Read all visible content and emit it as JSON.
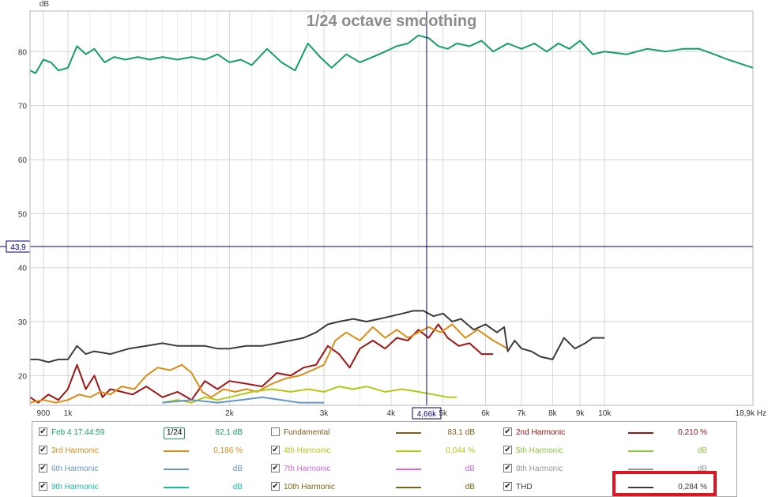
{
  "chart_data": {
    "type": "line",
    "title": "1/24 octave smoothing",
    "ylabel": "dB",
    "xunit": "Hz",
    "xscale": "log",
    "xlim": [
      850,
      18900
    ],
    "ylim": [
      14.5,
      87.5
    ],
    "grid": true,
    "y_ticks": [
      "20",
      "30",
      "40",
      "50",
      "60",
      "70",
      "80"
    ],
    "x_ticks": [
      {
        "v": 900,
        "label": "900"
      },
      {
        "v": 1000,
        "label": "1k"
      },
      {
        "v": 2000,
        "label": "2k"
      },
      {
        "v": 3000,
        "label": "3k"
      },
      {
        "v": 4000,
        "label": "4k"
      },
      {
        "v": 5000,
        "label": "5k"
      },
      {
        "v": 6000,
        "label": "6k"
      },
      {
        "v": 7000,
        "label": "7k"
      },
      {
        "v": 8000,
        "label": "8k"
      },
      {
        "v": 9000,
        "label": "9k"
      },
      {
        "v": 10000,
        "label": "10k"
      },
      {
        "v": 18900,
        "label": "18,9k Hz"
      }
    ],
    "minor_x_grid": [
      1100,
      1200,
      1300,
      1400,
      1500,
      1600,
      1700,
      1800,
      1900,
      2200,
      2400,
      2600,
      2800,
      3500,
      4500
    ],
    "cursor": {
      "x": 4660,
      "y": 43.9,
      "x_label": "4,66k",
      "y_label": "43,9"
    },
    "series": [
      {
        "name": "Feb 4 17:44:59",
        "color": "#14a064",
        "x": [
          850,
          870,
          900,
          930,
          960,
          1000,
          1040,
          1080,
          1120,
          1170,
          1220,
          1280,
          1350,
          1420,
          1500,
          1600,
          1700,
          1800,
          1900,
          2000,
          2100,
          2200,
          2350,
          2500,
          2650,
          2800,
          2950,
          3100,
          3300,
          3500,
          3700,
          3900,
          4100,
          4300,
          4500,
          4700,
          4900,
          5100,
          5300,
          5600,
          5900,
          6200,
          6600,
          7000,
          7400,
          7800,
          8200,
          8600,
          9000,
          9500,
          10000,
          11000,
          12000,
          13000,
          14000,
          15000,
          16000,
          17000,
          18900
        ],
        "y": [
          76.5,
          76,
          78.5,
          78,
          76.5,
          77,
          81,
          79.5,
          80.5,
          78,
          79,
          78.5,
          79,
          78.5,
          79,
          78.5,
          79,
          78.5,
          79.5,
          78,
          78.5,
          77.5,
          80.5,
          78,
          76.5,
          81.5,
          79,
          77,
          79.5,
          78,
          79,
          80,
          81,
          81.5,
          83,
          82.5,
          81,
          80.5,
          81.5,
          81,
          82,
          80,
          81.5,
          80.5,
          81.5,
          80,
          81.5,
          80.5,
          82,
          79.5,
          80,
          79.5,
          80.5,
          80,
          80.5,
          80.5,
          79.5,
          78.5,
          77
        ]
      },
      {
        "name": "Fundamental",
        "color": "#8a5a18",
        "x": [],
        "y": []
      },
      {
        "name": "2nd Harmonic",
        "color": "#a01414",
        "x": [
          850,
          880,
          920,
          960,
          1000,
          1040,
          1080,
          1120,
          1160,
          1200,
          1260,
          1320,
          1400,
          1500,
          1600,
          1700,
          1800,
          1900,
          2000,
          2150,
          2300,
          2450,
          2600,
          2750,
          2900,
          3050,
          3200,
          3350,
          3500,
          3700,
          3900,
          4100,
          4300,
          4500,
          4700,
          4900,
          5100,
          5350,
          5600,
          5900,
          6200
        ],
        "y": [
          16,
          15,
          16.5,
          15.5,
          17.5,
          22,
          17.5,
          20,
          16,
          17.5,
          17,
          16.5,
          18,
          16,
          17,
          15.5,
          19,
          17.5,
          19,
          18.5,
          18,
          20.5,
          20,
          21.5,
          22,
          25.5,
          24,
          21.5,
          25,
          26.5,
          25,
          27,
          26.5,
          28.5,
          27,
          29.5,
          27,
          25.5,
          26,
          24,
          24
        ]
      },
      {
        "name": "3rd Harmonic",
        "color": "#dc8c14",
        "x": [
          850,
          900,
          950,
          1000,
          1050,
          1100,
          1150,
          1200,
          1260,
          1330,
          1400,
          1470,
          1550,
          1630,
          1700,
          1780,
          1850,
          1950,
          2050,
          2150,
          2250,
          2400,
          2550,
          2700,
          2850,
          3000,
          3150,
          3300,
          3500,
          3700,
          3900,
          4100,
          4300,
          4500,
          4700,
          4950,
          5200,
          5500,
          5800,
          6200,
          6600
        ],
        "y": [
          15,
          15.5,
          15,
          15.5,
          16.5,
          16,
          17,
          16.5,
          18,
          17.5,
          20,
          21.5,
          21,
          22,
          20.5,
          17,
          16,
          17.5,
          17,
          17.5,
          17,
          18.5,
          19.5,
          20,
          21,
          22,
          26.5,
          28,
          26.5,
          29,
          27,
          28.5,
          27,
          28,
          29,
          28,
          29.5,
          27,
          28.5,
          26.5,
          25
        ]
      },
      {
        "name": "4th Harmonic",
        "color": "#b4c814",
        "x": [
          1500,
          1600,
          1700,
          1800,
          1900,
          2000,
          2100,
          2200,
          2400,
          2600,
          2800,
          3000,
          3200,
          3400,
          3600,
          3900,
          4200,
          4500,
          4800,
          5100,
          5300
        ],
        "y": [
          15,
          15.5,
          15,
          16,
          15.5,
          16,
          16.5,
          17,
          17.5,
          17,
          17.5,
          17,
          18,
          17.5,
          18,
          17,
          17.5,
          17,
          16.5,
          16,
          16
        ]
      },
      {
        "name": "5th Harmonic",
        "color": "#8cc83c",
        "x": [],
        "y": []
      },
      {
        "name": "6th Harmonic",
        "color": "#6496c8",
        "x": [
          1500,
          1700,
          1900,
          2100,
          2300,
          2500,
          2700,
          2900,
          3000
        ],
        "y": [
          15,
          15.5,
          15,
          15.5,
          16,
          15.5,
          15,
          15,
          15
        ]
      },
      {
        "name": "7th Harmonic",
        "color": "#dc64dc",
        "x": [],
        "y": []
      },
      {
        "name": "8th Harmonic",
        "color": "#969696",
        "x": [],
        "y": []
      },
      {
        "name": "9th Harmonic",
        "color": "#14bea0",
        "x": [],
        "y": []
      },
      {
        "name": "10th Harmonic",
        "color": "#786414",
        "x": [],
        "y": []
      },
      {
        "name": "THD",
        "color": "#3c3c3c",
        "x": [
          850,
          880,
          920,
          960,
          1000,
          1040,
          1080,
          1120,
          1200,
          1300,
          1400,
          1500,
          1600,
          1700,
          1800,
          1900,
          2000,
          2150,
          2300,
          2450,
          2600,
          2750,
          2900,
          3050,
          3200,
          3400,
          3600,
          3800,
          4000,
          4200,
          4400,
          4600,
          4800,
          5000,
          5200,
          5400,
          5700,
          6000,
          6300,
          6500,
          6600,
          6800,
          7000,
          7300,
          7600,
          8000,
          8400,
          8800,
          9200,
          9500,
          9800,
          10000
        ],
        "y": [
          23,
          23,
          22.5,
          23,
          23,
          25.5,
          24,
          24.5,
          24,
          25,
          25.5,
          26,
          25.5,
          25.5,
          25.5,
          25,
          25,
          25.5,
          25.5,
          26,
          26.5,
          27,
          28,
          29.5,
          30,
          30.5,
          30,
          30.5,
          31,
          31.5,
          32,
          32,
          31,
          31.5,
          30,
          30.5,
          28.5,
          29.5,
          28,
          29,
          24.5,
          26.5,
          25,
          24.5,
          23.5,
          23,
          27,
          25,
          26,
          27,
          27,
          27
        ]
      }
    ]
  },
  "legend": {
    "rows": [
      [
        {
          "label": "Feb 4 17:44:59",
          "checked": true,
          "value": "82,1 dB",
          "color": "#14a064",
          "smooth": "1/24"
        },
        {
          "label": "Fundamental",
          "checked": false,
          "value": "83,1 dB",
          "color": "#8a5a18"
        },
        {
          "label": "2nd Harmonic",
          "checked": true,
          "value": "0,210 %",
          "color": "#a01414"
        }
      ],
      [
        {
          "label": "3rd Harmonic",
          "checked": true,
          "value": "0,186 %",
          "color": "#dc8c14"
        },
        {
          "label": "4th Harmonic",
          "checked": true,
          "value": "0,044 %",
          "color": "#b4c814"
        },
        {
          "label": "5th Harmonic",
          "checked": true,
          "value": "dB",
          "color": "#8cc83c"
        }
      ],
      [
        {
          "label": "6th Harmonic",
          "checked": true,
          "value": "dB",
          "color": "#6496c8"
        },
        {
          "label": "7th Harmonic",
          "checked": true,
          "value": "dB",
          "color": "#dc64dc"
        },
        {
          "label": "8th Harmonic",
          "checked": true,
          "value": "dB",
          "color": "#969696"
        }
      ],
      [
        {
          "label": "9th Harmonic",
          "checked": true,
          "value": "dB",
          "color": "#14bea0"
        },
        {
          "label": "10th Harmonic",
          "checked": true,
          "value": "dB",
          "color": "#786414"
        },
        {
          "label": "THD",
          "checked": true,
          "value": "0,284 %",
          "color": "#3c3c3c"
        }
      ]
    ]
  },
  "highlight": {
    "target": "THD",
    "color": "#e0141e"
  }
}
